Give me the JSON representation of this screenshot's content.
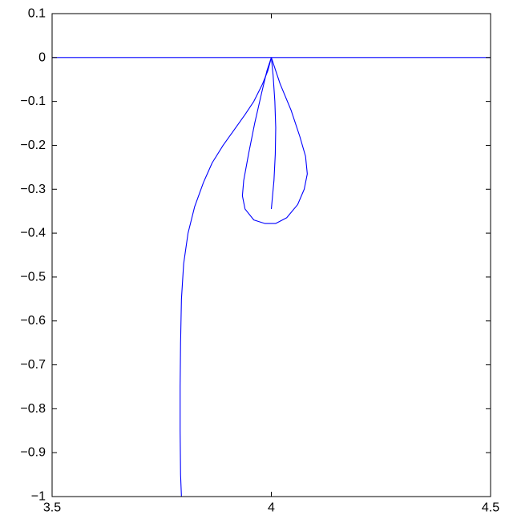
{
  "chart_data": {
    "type": "line",
    "title": "",
    "xlabel": "",
    "ylabel": "",
    "xlim": [
      3.5,
      4.5
    ],
    "ylim": [
      -1,
      0.1
    ],
    "grid": false,
    "line_color": "#0000ff",
    "x_ticks": [
      {
        "value": 3.5,
        "label": "3.5"
      },
      {
        "value": 4,
        "label": "4"
      },
      {
        "value": 4.5,
        "label": "4.5"
      }
    ],
    "y_ticks": [
      {
        "value": 0.1,
        "label": "0.1"
      },
      {
        "value": 0,
        "label": "0"
      },
      {
        "value": -0.1,
        "label": "−0.1"
      },
      {
        "value": -0.2,
        "label": "−0.2"
      },
      {
        "value": -0.3,
        "label": "−0.3"
      },
      {
        "value": -0.4,
        "label": "−0.4"
      },
      {
        "value": -0.5,
        "label": "−0.5"
      },
      {
        "value": -0.6,
        "label": "−0.6"
      },
      {
        "value": -0.7,
        "label": "−0.7"
      },
      {
        "value": -0.8,
        "label": "−0.8"
      },
      {
        "value": -0.9,
        "label": "−0.9"
      },
      {
        "value": -1,
        "label": "−1"
      }
    ],
    "series": [
      {
        "points": [
          [
            3.5,
            0
          ],
          [
            4.5,
            0
          ]
        ]
      },
      {
        "points": [
          [
            3.795,
            -1.0
          ],
          [
            3.793,
            -0.95
          ],
          [
            3.792,
            -0.85
          ],
          [
            3.792,
            -0.75
          ],
          [
            3.793,
            -0.65
          ],
          [
            3.795,
            -0.55
          ],
          [
            3.8,
            -0.47
          ],
          [
            3.81,
            -0.4
          ],
          [
            3.825,
            -0.34
          ],
          [
            3.845,
            -0.285
          ],
          [
            3.865,
            -0.24
          ],
          [
            3.89,
            -0.2
          ],
          [
            3.915,
            -0.165
          ],
          [
            3.94,
            -0.13
          ],
          [
            3.96,
            -0.1
          ],
          [
            3.98,
            -0.06
          ],
          [
            3.992,
            -0.03
          ],
          [
            4.0,
            0.0
          ]
        ]
      },
      {
        "points": [
          [
            4.0,
            0.0
          ],
          [
            3.99,
            -0.03
          ],
          [
            3.978,
            -0.08
          ],
          [
            3.962,
            -0.15
          ],
          [
            3.948,
            -0.22
          ],
          [
            3.937,
            -0.28
          ],
          [
            3.934,
            -0.315
          ],
          [
            3.94,
            -0.345
          ],
          [
            3.96,
            -0.37
          ],
          [
            3.985,
            -0.378
          ],
          [
            4.01,
            -0.378
          ],
          [
            4.035,
            -0.365
          ],
          [
            4.06,
            -0.335
          ],
          [
            4.075,
            -0.3
          ],
          [
            4.082,
            -0.265
          ],
          [
            4.078,
            -0.225
          ],
          [
            4.065,
            -0.18
          ],
          [
            4.045,
            -0.12
          ],
          [
            4.02,
            -0.06
          ],
          [
            4.005,
            -0.015
          ],
          [
            4.0,
            0.0
          ]
        ]
      },
      {
        "points": [
          [
            4.0,
            0.0
          ],
          [
            4.004,
            -0.04
          ],
          [
            4.008,
            -0.1
          ],
          [
            4.01,
            -0.16
          ],
          [
            4.009,
            -0.22
          ],
          [
            4.006,
            -0.28
          ],
          [
            4.0,
            -0.345
          ]
        ]
      }
    ]
  }
}
